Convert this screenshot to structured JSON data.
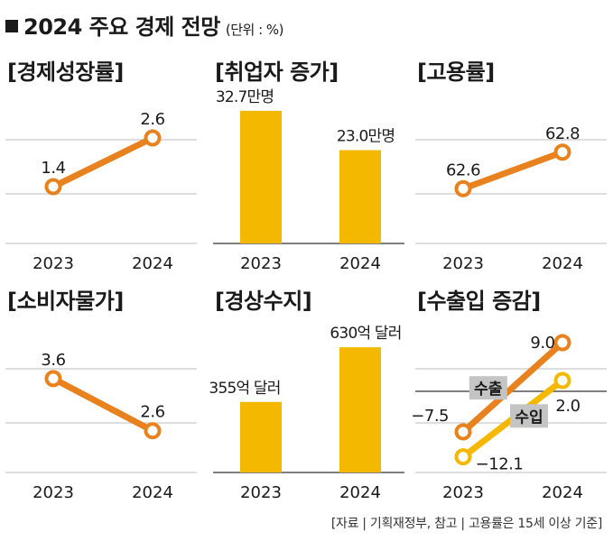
{
  "header": {
    "title": "2024 주요 경제 전망",
    "unit": "(단위 : %)"
  },
  "source": "[자료 | 기획재정부, 참고 | 고용률은 15세 이상 기준]",
  "colors": {
    "orange": "#e8821e",
    "yellow": "#f5b800",
    "bar": "#f5b800",
    "grid": "#bdbdbd",
    "axis": "#555555",
    "label_bg": "#c4c4c4"
  },
  "chart_data": [
    {
      "id": "gdp",
      "type": "line",
      "title": "[경제성장률]",
      "categories": [
        "2023",
        "2024"
      ],
      "series": [
        {
          "values": [
            1.4,
            2.6
          ],
          "labels": [
            "1.4",
            "2.6"
          ],
          "color": "orange"
        }
      ],
      "ylim": [
        0,
        3.6
      ]
    },
    {
      "id": "jobs",
      "type": "bar",
      "title": "[취업자 증가]",
      "categories": [
        "2023",
        "2024"
      ],
      "series": [
        {
          "values": [
            32.7,
            23.0
          ],
          "labels": [
            "32.7만명",
            "23.0만명"
          ],
          "color": "bar"
        }
      ],
      "ylim": [
        0,
        36
      ]
    },
    {
      "id": "employment",
      "type": "line",
      "title": "[고용률]",
      "categories": [
        "2023",
        "2024"
      ],
      "series": [
        {
          "values": [
            62.6,
            62.8
          ],
          "labels": [
            "62.6",
            "62.8"
          ],
          "color": "orange"
        }
      ],
      "ylim": [
        62.3,
        63.1
      ]
    },
    {
      "id": "cpi",
      "type": "line",
      "title": "[소비자물가]",
      "categories": [
        "2023",
        "2024"
      ],
      "series": [
        {
          "values": [
            3.6,
            2.6
          ],
          "labels": [
            "3.6",
            "2.6"
          ],
          "color": "orange"
        }
      ],
      "ylim": [
        1.8,
        4.6
      ]
    },
    {
      "id": "current_account",
      "type": "bar",
      "title": "[경상수지]",
      "categories": [
        "2023",
        "2024"
      ],
      "series": [
        {
          "values": [
            355,
            630
          ],
          "labels": [
            "355억 달러",
            "630억 달러"
          ],
          "color": "bar"
        }
      ],
      "ylim": [
        0,
        735
      ]
    },
    {
      "id": "trade",
      "type": "line",
      "title": "[수출입 증감]",
      "categories": [
        "2023",
        "2024"
      ],
      "series": [
        {
          "name": "수출",
          "values": [
            -7.5,
            9.0
          ],
          "labels": [
            "−7.5",
            "9.0"
          ],
          "color": "orange"
        },
        {
          "name": "수입",
          "values": [
            -12.1,
            2.0
          ],
          "labels": [
            "−12.1",
            "2.0"
          ],
          "color": "yellow"
        }
      ],
      "ylim": [
        -15,
        12
      ],
      "zero_line": true
    }
  ]
}
